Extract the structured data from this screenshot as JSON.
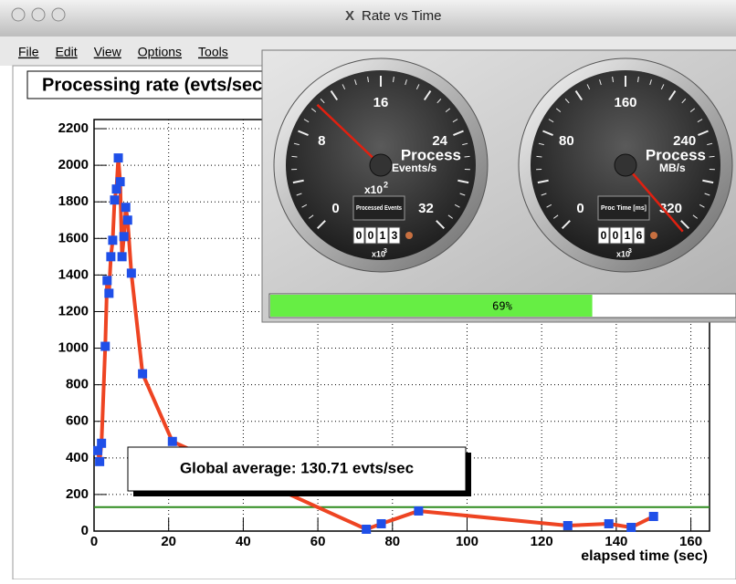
{
  "window": {
    "title": "Rate vs Time",
    "menu": [
      "File",
      "Edit",
      "View",
      "Options",
      "Tools"
    ]
  },
  "chart_data": {
    "type": "line",
    "title": "Processing rate (evts/sec)",
    "x_label": "elapsed time (sec)",
    "x": [
      1,
      1.5,
      2,
      3,
      3.5,
      4,
      4.5,
      5,
      5.5,
      6,
      6.5,
      7,
      7.5,
      8,
      8.5,
      9,
      10,
      13,
      21,
      73,
      77,
      87,
      127,
      138,
      144,
      150
    ],
    "values": [
      440,
      380,
      480,
      1010,
      1370,
      1300,
      1500,
      1590,
      1810,
      1870,
      2040,
      1910,
      1500,
      1610,
      1770,
      1700,
      1410,
      860,
      490,
      10,
      40,
      110,
      30,
      40,
      20,
      80
    ],
    "color": "#ee4422",
    "marker_color": "#1f4fe8",
    "xlim": [
      0,
      165
    ],
    "ylim": [
      0,
      2250
    ],
    "xticks": [
      0,
      20,
      40,
      60,
      80,
      100,
      120,
      140,
      160
    ],
    "yticks": [
      0,
      200,
      400,
      600,
      800,
      1000,
      1200,
      1400,
      1600,
      1800,
      2000,
      2200
    ],
    "grid": true,
    "average": {
      "value": 130.71,
      "color": "#2e8b1e",
      "label": "Global average: 130.71 evts/sec"
    }
  },
  "gauges": [
    {
      "ticks": [
        "0",
        "8",
        "16",
        "24",
        "32"
      ],
      "range": [
        0,
        32
      ],
      "needle": 10.5,
      "name": "Process",
      "unit": "Events/s",
      "scale": "x10",
      "scale_exp": "2",
      "counter_label": "Processed Events",
      "digits": [
        "0",
        "0",
        "1",
        "3"
      ],
      "counter_scale": "x10",
      "counter_exp": "3"
    },
    {
      "ticks": [
        "0",
        "80",
        "160",
        "240",
        "320"
      ],
      "range": [
        0,
        320
      ],
      "needle": 325,
      "name": "Process",
      "unit": "MB/s",
      "counter_label": "Proc Time [ms]",
      "digits": [
        "0",
        "0",
        "1",
        "6"
      ],
      "counter_scale": "x10",
      "counter_exp": "3"
    }
  ],
  "progress": {
    "value": 69,
    "label": "69%",
    "color": "#66ee44"
  }
}
